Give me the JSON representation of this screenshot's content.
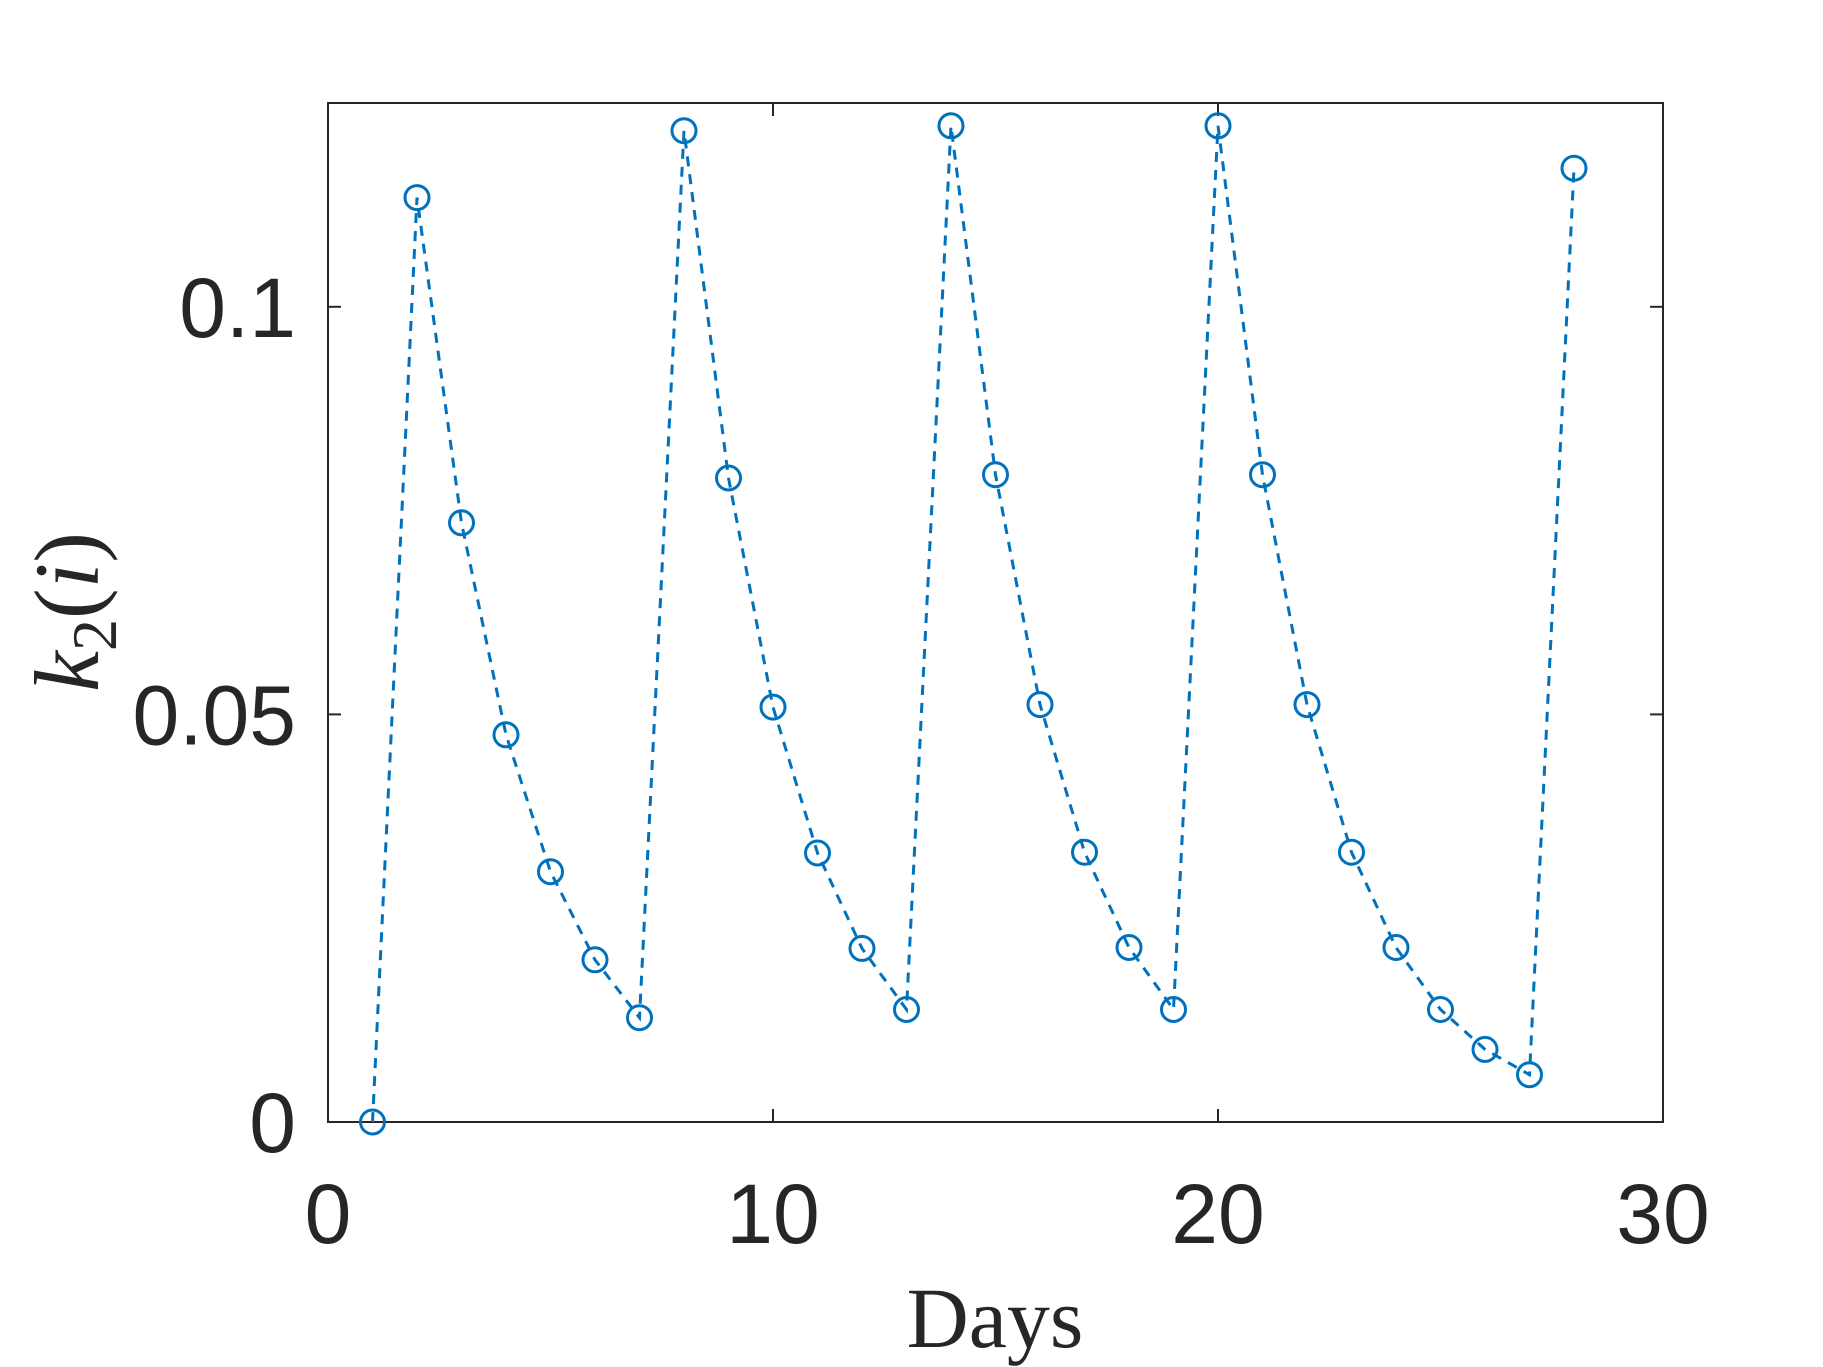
{
  "chart_data": {
    "type": "line",
    "xlabel": "Days",
    "ylabel": {
      "base": "k",
      "sub": "2",
      "open": "(",
      "arg": "i",
      "close": ")"
    },
    "xlim": [
      0,
      30
    ],
    "ylim": [
      0,
      0.125
    ],
    "xticks": [
      0,
      10,
      20,
      30
    ],
    "xtick_labels": [
      "0",
      "10",
      "20",
      "30"
    ],
    "yticks": [
      0,
      0.05,
      0.1
    ],
    "ytick_labels": [
      "0",
      "0.05",
      "0.1"
    ],
    "grid": false,
    "line_style": "dashed",
    "marker": "circle",
    "color": "#0072BD",
    "series": [
      {
        "x": [
          1,
          2,
          3,
          4,
          5,
          6,
          7,
          8,
          9,
          10,
          11,
          12,
          13,
          14,
          15,
          16,
          17,
          18,
          19,
          20,
          21,
          22,
          23,
          24,
          25,
          26,
          27,
          28
        ],
        "y": [
          0,
          0.1134,
          0.0735,
          0.0475,
          0.0307,
          0.0199,
          0.0128,
          0.1216,
          0.079,
          0.0509,
          0.033,
          0.0213,
          0.0138,
          0.1222,
          0.0794,
          0.0512,
          0.0331,
          0.0214,
          0.0138,
          0.1222,
          0.0794,
          0.0512,
          0.0331,
          0.0214,
          0.0138,
          0.0089,
          0.0058,
          0.117
        ]
      }
    ]
  }
}
